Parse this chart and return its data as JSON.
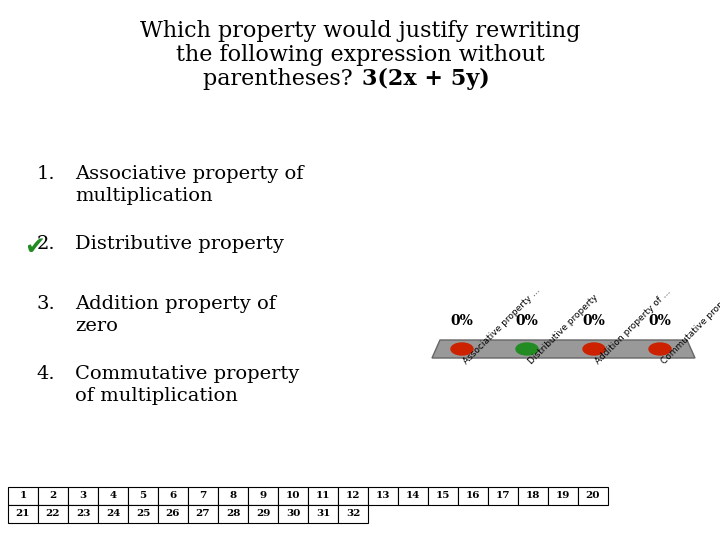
{
  "title_line1": "Which property would justify rewriting",
  "title_line2": "the following expression without",
  "title_line3_normal": "parentheses? ",
  "title_line3_bold": "3(2x + 5y)",
  "options": [
    [
      "Associative property of",
      "multiplication"
    ],
    [
      "Distributive property"
    ],
    [
      "Addition property of",
      "zero"
    ],
    [
      "Commutative property",
      "of multiplication"
    ]
  ],
  "option_numbers": [
    "1.",
    "2.",
    "3.",
    "4."
  ],
  "correct_index": 1,
  "checkmark_color": "#228B22",
  "percentages": [
    "0%",
    "0%",
    "0%",
    "0%"
  ],
  "bar_labels": [
    "Associative property ...",
    "Distributive property",
    "Addition property of ...",
    "Commutative propert..."
  ],
  "button_colors": [
    "#cc2200",
    "#228B22",
    "#cc2200",
    "#cc2200"
  ],
  "bg_color": "#ffffff",
  "text_color": "#000000",
  "number_row1": [
    "1",
    "2",
    "3",
    "4",
    "5",
    "6",
    "7",
    "8",
    "9",
    "10",
    "11",
    "12",
    "13",
    "14",
    "15",
    "16",
    "17",
    "18",
    "19",
    "20"
  ],
  "number_row2": [
    "21",
    "22",
    "23",
    "24",
    "25",
    "26",
    "27",
    "28",
    "29",
    "30",
    "31",
    "32"
  ],
  "table_bg": "#ffffff",
  "table_border": "#000000",
  "panel_color": "#999999",
  "panel_edge_color": "#666666"
}
